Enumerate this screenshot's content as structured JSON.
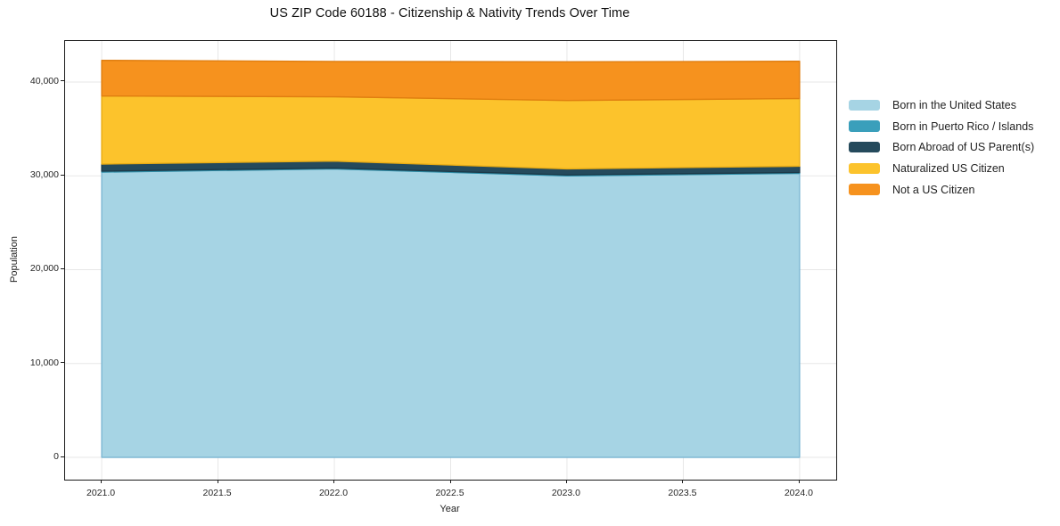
{
  "title": "US ZIP Code 60188 - Citizenship & Nativity Trends Over Time",
  "chart_data": {
    "type": "area",
    "stacked": true,
    "title": "US ZIP Code 60188 - Citizenship & Nativity Trends Over Time",
    "xlabel": "Year",
    "ylabel": "Population",
    "grid": true,
    "legend_position": "right-outside",
    "x": [
      2021,
      2022,
      2023,
      2024
    ],
    "series": [
      {
        "name": "Born in the United States",
        "color": "#A6D4E4",
        "edge": "#7FB8D4",
        "values": [
          30400,
          30740,
          30000,
          30260
        ]
      },
      {
        "name": "Born in Puerto Rico / Islands",
        "color": "#3A9FBB",
        "edge": "#2F8FA9",
        "values": [
          100,
          90,
          100,
          100
        ]
      },
      {
        "name": "Born Abroad of US Parent(s)",
        "color": "#254A5C",
        "edge": "#1C3A49",
        "values": [
          760,
          740,
          645,
          670
        ]
      },
      {
        "name": "Naturalized US Citizen",
        "color": "#FCC32C",
        "edge": "#E8AC15",
        "values": [
          7250,
          6860,
          7290,
          7210
        ]
      },
      {
        "name": "Not a US Citizen",
        "color": "#F6921E",
        "edge": "#E07E10",
        "values": [
          3800,
          3760,
          4120,
          3970
        ]
      }
    ],
    "stack_totals": [
      42310,
      42190,
      42155,
      42210
    ],
    "x_ticks": {
      "values": [
        2021.0,
        2021.5,
        2022.0,
        2022.5,
        2023.0,
        2023.5,
        2024.0
      ],
      "labels": [
        "2021.0",
        "2021.5",
        "2022.0",
        "2022.5",
        "2023.0",
        "2023.5",
        "2024.0"
      ]
    },
    "y_ticks": {
      "values": [
        0,
        10000,
        20000,
        30000,
        40000
      ],
      "labels": [
        "0",
        "10,000",
        "20,000",
        "30,000",
        "40,000"
      ]
    },
    "xlim": [
      2020.8425,
      2024.1575
    ],
    "ylim": [
      -2375,
      44370
    ]
  },
  "colors": {
    "background": "#ffffff",
    "grid": "#e7e7e7",
    "spine": "#1a1a1a",
    "text": "#1f1f1f"
  }
}
